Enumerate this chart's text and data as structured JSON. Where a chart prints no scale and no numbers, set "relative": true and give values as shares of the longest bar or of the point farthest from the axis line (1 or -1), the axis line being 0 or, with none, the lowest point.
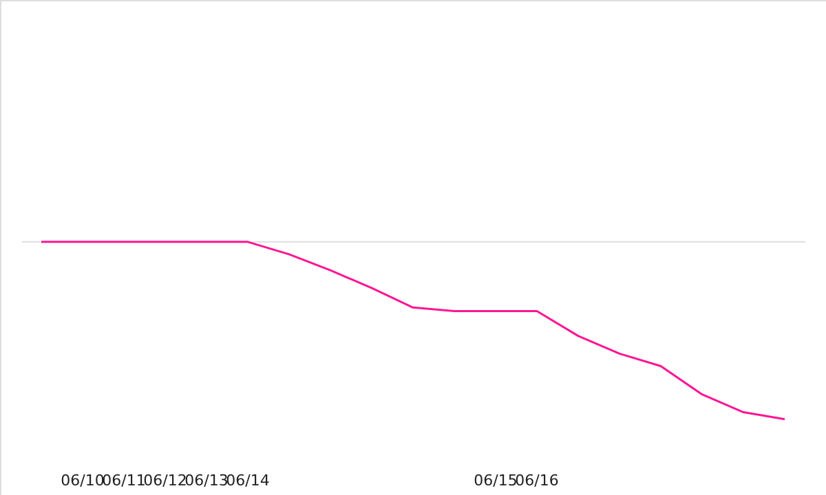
{
  "chart_data": {
    "type": "line",
    "relative": true,
    "grid": false,
    "marker": "none",
    "line_style": "solid",
    "categories": [
      null,
      "06/10",
      "06/11",
      "06/12",
      "06/13",
      "06/14",
      null,
      null,
      null,
      null,
      null,
      "06/15",
      "06/16",
      null,
      null,
      null,
      null,
      null,
      null
    ],
    "series": [
      {
        "color": "#ff1493",
        "values": [
          0,
          0,
          0,
          0,
          0,
          0,
          -0.07,
          -0.16,
          -0.26,
          -0.37,
          -0.39,
          -0.39,
          -0.39,
          -0.53,
          -0.63,
          -0.7,
          -0.86,
          -0.96,
          -1
        ]
      }
    ]
  }
}
